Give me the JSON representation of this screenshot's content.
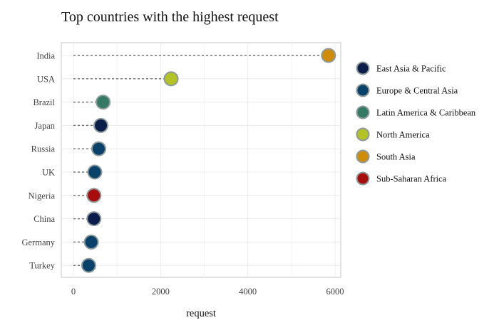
{
  "chart_data": {
    "type": "scatter",
    "title": "Top countries with the highest request",
    "xlabel": "request",
    "ylabel": "",
    "xlim": [
      -200,
      6080
    ],
    "xticks": [
      0,
      2000,
      4000,
      6000
    ],
    "grid": true,
    "legend_position": "right",
    "categories": [
      "India",
      "USA",
      "Brazil",
      "Japan",
      "Russia",
      "UK",
      "Nigeria",
      "China",
      "Germany",
      "Turkey"
    ],
    "points": [
      {
        "country": "India",
        "value": 5850,
        "region": "South Asia"
      },
      {
        "country": "USA",
        "value": 2240,
        "region": "North America"
      },
      {
        "country": "Brazil",
        "value": 680,
        "region": "Latin America & Caribbean"
      },
      {
        "country": "Japan",
        "value": 630,
        "region": "East Asia & Pacific"
      },
      {
        "country": "Russia",
        "value": 580,
        "region": "Europe & Central Asia"
      },
      {
        "country": "UK",
        "value": 490,
        "region": "Europe & Central Asia"
      },
      {
        "country": "Nigeria",
        "value": 470,
        "region": "Sub-Saharan Africa"
      },
      {
        "country": "China",
        "value": 470,
        "region": "East Asia & Pacific"
      },
      {
        "country": "Germany",
        "value": 410,
        "region": "Europe & Central Asia"
      },
      {
        "country": "Turkey",
        "value": 350,
        "region": "Europe & Central Asia"
      }
    ],
    "legend": [
      {
        "name": "East Asia & Pacific",
        "color": "#0b1e4b"
      },
      {
        "name": "Europe & Central Asia",
        "color": "#08416a"
      },
      {
        "name": "Latin America & Caribbean",
        "color": "#347a62"
      },
      {
        "name": "North America",
        "color": "#b3c224"
      },
      {
        "name": "South Asia",
        "color": "#cf8c0a"
      },
      {
        "name": "Sub-Saharan Africa",
        "color": "#a80d0d"
      }
    ]
  }
}
